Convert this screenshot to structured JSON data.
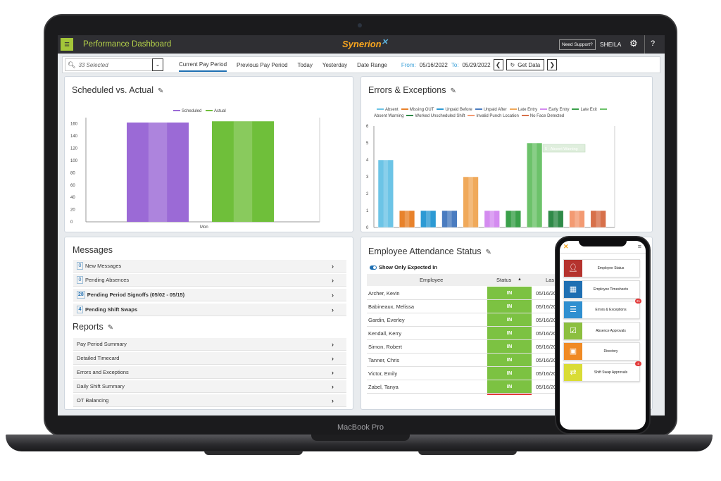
{
  "header": {
    "app_title": "Performance Dashboard",
    "logo": "Synerion",
    "support_label": "Need Support?",
    "user": "SHEILA",
    "help": "?"
  },
  "filter": {
    "selected": "33 Selected",
    "tabs": [
      "Current Pay Period",
      "Previous Pay Period",
      "Today",
      "Yesterday",
      "Date Range"
    ],
    "active_tab": "Current Pay Period",
    "from_label": "From:",
    "from_date": "05/16/2022",
    "to_label": "To:",
    "to_date": "05/29/2022",
    "get_data": "Get Data"
  },
  "scheduled": {
    "title": "Scheduled vs. Actual",
    "legend": [
      "Scheduled",
      "Actual"
    ]
  },
  "errors": {
    "title": "Errors & Exceptions",
    "tooltip": "5 - Absent Warning"
  },
  "messages": {
    "title": "Messages",
    "items": [
      {
        "count": "0",
        "label": "New Messages"
      },
      {
        "count": "0",
        "label": "Pending Absences"
      },
      {
        "count": "28",
        "label": "Pending Period Signoffs (05/02 - 05/15)"
      },
      {
        "count": "4",
        "label": "Pending Shift Swaps"
      }
    ]
  },
  "reports": {
    "title": "Reports",
    "items": [
      "Pay Period Summary",
      "Detailed Timecard",
      "Errors and Exceptions",
      "Daily Shift Summary",
      "OT Balancing"
    ]
  },
  "attendance": {
    "title": "Employee Attendance Status",
    "toggle_label": "Show Only Expected In",
    "columns": [
      "Employee",
      "Status",
      "Las"
    ],
    "sort_arrow": "▲",
    "rows": [
      {
        "name": "Archer, Kevin",
        "status": "IN",
        "date": "05/16/2022"
      },
      {
        "name": "Babineaux, Melissa",
        "status": "IN",
        "date": "05/16/2022"
      },
      {
        "name": "Gardin, Everley",
        "status": "IN",
        "date": "05/16/2022"
      },
      {
        "name": "Kendall, Kerry",
        "status": "IN",
        "date": "05/16/2022"
      },
      {
        "name": "Simon, Robert",
        "status": "IN",
        "date": "05/16/2022"
      },
      {
        "name": "Tanner, Chris",
        "status": "IN",
        "date": "05/16/2022"
      },
      {
        "name": "Victor, Emily",
        "status": "IN",
        "date": "05/16/2022"
      },
      {
        "name": "Zabel, Tanya",
        "status": "IN",
        "date": "05/16/2022"
      }
    ]
  },
  "device_label": "MacBook Pro",
  "phone": {
    "items": [
      {
        "label": "Employee Status",
        "color": "#b5332e",
        "icon": "person-icon",
        "badge": ""
      },
      {
        "label": "Employee Timesheets",
        "color": "#1f6fb2",
        "icon": "calendar-icon",
        "badge": ""
      },
      {
        "label": "Errors & Exceptions",
        "color": "#2f8fd0",
        "icon": "list-icon",
        "badge": "21"
      },
      {
        "label": "Absence Approvals",
        "color": "#8cbf3f",
        "icon": "calendar-check-icon",
        "badge": ""
      },
      {
        "label": "Directory",
        "color": "#f08a24",
        "icon": "contact-book-icon",
        "badge": ""
      },
      {
        "label": "Shift Swap Approvals",
        "color": "#d9dc36",
        "icon": "swap-icon",
        "badge": "4"
      }
    ]
  },
  "chart_data": [
    {
      "type": "bar",
      "title": "Scheduled vs. Actual",
      "categories": [
        "Mon"
      ],
      "series": [
        {
          "name": "Scheduled",
          "values": [
            162
          ],
          "color": "#9b6ad6"
        },
        {
          "name": "Actual",
          "values": [
            164
          ],
          "color": "#6fbf3a"
        }
      ],
      "ylim": [
        0,
        170
      ],
      "yticks": [
        0,
        20,
        40,
        60,
        80,
        100,
        120,
        140,
        160
      ],
      "legend_position": "top"
    },
    {
      "type": "bar",
      "title": "Errors & Exceptions",
      "series": [
        {
          "name": "Absent",
          "values": [
            4
          ],
          "color": "#6cc4e6"
        },
        {
          "name": "Missing OUT",
          "values": [
            1
          ],
          "color": "#e8822b"
        },
        {
          "name": "Unpaid Before",
          "values": [
            1
          ],
          "color": "#2c9ad4"
        },
        {
          "name": "Unpaid After",
          "values": [
            1
          ],
          "color": "#4a7cc0"
        },
        {
          "name": "Late Entry",
          "values": [
            3
          ],
          "color": "#f0a95a"
        },
        {
          "name": "Early Entry",
          "values": [
            1
          ],
          "color": "#d48bf0"
        },
        {
          "name": "Late Exit",
          "values": [
            1
          ],
          "color": "#3aa04a"
        },
        {
          "name": "Absent Warning",
          "values": [
            5
          ],
          "color": "#6cc26a"
        },
        {
          "name": "Worked Unscheduled Shift",
          "values": [
            1
          ],
          "color": "#2f8a48"
        },
        {
          "name": "Invalid Punch Location",
          "values": [
            1
          ],
          "color": "#f39a72"
        },
        {
          "name": "No Face Detected",
          "values": [
            1
          ],
          "color": "#d7704a"
        }
      ],
      "ylim": [
        0,
        6
      ],
      "yticks": [
        0,
        1,
        2,
        3,
        4,
        5,
        6
      ],
      "legend_position": "top"
    }
  ]
}
